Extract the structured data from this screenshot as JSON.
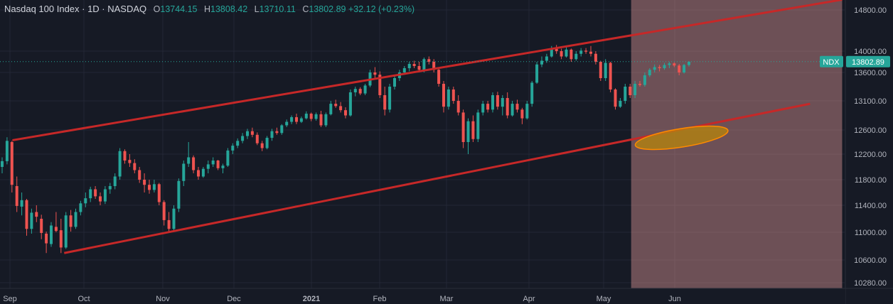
{
  "header": {
    "symbol_title": "Nasdaq 100 Index · 1D · NASDAQ",
    "open_label": "O",
    "open_value": "13744.15",
    "high_label": "H",
    "high_value": "13808.42",
    "low_label": "L",
    "low_value": "13710.11",
    "close_label": "C",
    "close_value": "13802.89",
    "change_value": "+32.12 (+0.23%)"
  },
  "last_price": {
    "ticker": "NDX",
    "value": "13802.89"
  },
  "colors": {
    "up": "#26a69a",
    "down": "#ef5350",
    "channel": "#c62828",
    "highlight_fill": "#e89b9b",
    "ellipse_fill": "#b8860b",
    "background": "#161a25"
  },
  "chart_data": {
    "type": "candlestick",
    "title": "Nasdaq 100 Index",
    "y_axis_ticks": [
      "14800.00",
      "14000.00",
      "13600.00",
      "13100.00",
      "12600.00",
      "12200.00",
      "11800.00",
      "11400.00",
      "11000.00",
      "10600.00",
      "10280.00"
    ],
    "x_axis_ticks": [
      "Sep",
      "Oct",
      "Nov",
      "Dec",
      "2021",
      "Feb",
      "Mar",
      "Apr",
      "May",
      "Jun"
    ],
    "ylim": [
      10200,
      15000
    ],
    "channel_lines": [
      {
        "name": "upper",
        "from": {
          "date": "2020-09-02",
          "price": 12430
        },
        "to": {
          "date": "2021-08-13",
          "price": 15000
        }
      },
      {
        "name": "lower",
        "from": {
          "date": "2020-09-23",
          "price": 10700
        },
        "to": {
          "date": "2021-07-30",
          "price": 13050
        }
      }
    ],
    "highlight_zone": {
      "from_date": "2021-05-13",
      "to_date": "2021-08-13"
    },
    "ellipse_marker": {
      "center_date": "2021-06-04",
      "center_price": 12470
    },
    "series": [
      {
        "values": [
          [
            12000,
            12150,
            11900,
            12090
          ],
          [
            12090,
            12480,
            12040,
            12420
          ],
          [
            12400,
            12420,
            11600,
            11720
          ],
          [
            11700,
            11850,
            11300,
            11390
          ],
          [
            11380,
            11600,
            11250,
            11480
          ],
          [
            11480,
            11500,
            10950,
            11050
          ],
          [
            11050,
            11350,
            10980,
            11290
          ],
          [
            11300,
            11400,
            11150,
            11230
          ],
          [
            11200,
            11260,
            10900,
            10990
          ],
          [
            10980,
            11010,
            10700,
            10840
          ],
          [
            10830,
            11150,
            10790,
            11100
          ],
          [
            11080,
            11300,
            11000,
            11020
          ],
          [
            11030,
            11200,
            10700,
            10780
          ],
          [
            10780,
            11300,
            10760,
            11250
          ],
          [
            11250,
            11330,
            11010,
            11080
          ],
          [
            11080,
            11350,
            11050,
            11300
          ],
          [
            11300,
            11470,
            11250,
            11430
          ],
          [
            11430,
            11600,
            11370,
            11510
          ],
          [
            11510,
            11690,
            11450,
            11650
          ],
          [
            11650,
            11700,
            11500,
            11540
          ],
          [
            11540,
            11600,
            11400,
            11460
          ],
          [
            11460,
            11700,
            11420,
            11650
          ],
          [
            11650,
            11750,
            11580,
            11700
          ],
          [
            11700,
            11900,
            11650,
            11850
          ],
          [
            11850,
            12300,
            11800,
            12250
          ],
          [
            12250,
            12280,
            12050,
            12100
          ],
          [
            12110,
            12200,
            12000,
            12060
          ],
          [
            12060,
            12120,
            11900,
            11950
          ],
          [
            11950,
            12000,
            11750,
            11800
          ],
          [
            11800,
            11900,
            11600,
            11720
          ],
          [
            11720,
            11800,
            11580,
            11640
          ],
          [
            11640,
            11800,
            11600,
            11730
          ],
          [
            11730,
            11750,
            11400,
            11450
          ],
          [
            11450,
            11480,
            11100,
            11180
          ],
          [
            11180,
            11300,
            11000,
            11050
          ],
          [
            11050,
            11400,
            11020,
            11350
          ],
          [
            11350,
            11820,
            11300,
            11780
          ],
          [
            11780,
            12100,
            11700,
            12050
          ],
          [
            12050,
            12400,
            12000,
            12150
          ],
          [
            12150,
            12180,
            11900,
            11950
          ],
          [
            11950,
            12000,
            11800,
            11850
          ],
          [
            11850,
            12000,
            11830,
            11970
          ],
          [
            11970,
            12100,
            11900,
            12040
          ],
          [
            12040,
            12150,
            12000,
            12100
          ],
          [
            12100,
            12110,
            11950,
            11980
          ],
          [
            11980,
            12050,
            11900,
            12020
          ],
          [
            12020,
            12300,
            12000,
            12260
          ],
          [
            12260,
            12380,
            12200,
            12340
          ],
          [
            12340,
            12460,
            12300,
            12420
          ],
          [
            12420,
            12550,
            12380,
            12500
          ],
          [
            12500,
            12620,
            12450,
            12580
          ],
          [
            12580,
            12640,
            12480,
            12520
          ],
          [
            12520,
            12560,
            12350,
            12380
          ],
          [
            12380,
            12420,
            12250,
            12300
          ],
          [
            12300,
            12500,
            12280,
            12470
          ],
          [
            12470,
            12620,
            12420,
            12580
          ],
          [
            12580,
            12640,
            12520,
            12550
          ],
          [
            12550,
            12700,
            12520,
            12680
          ],
          [
            12680,
            12780,
            12650,
            12740
          ],
          [
            12740,
            12850,
            12700,
            12820
          ],
          [
            12820,
            12880,
            12700,
            12740
          ],
          [
            12740,
            12830,
            12720,
            12800
          ],
          [
            12800,
            12920,
            12780,
            12880
          ],
          [
            12880,
            12900,
            12750,
            12790
          ],
          [
            12790,
            12900,
            12760,
            12870
          ],
          [
            12870,
            12930,
            12650,
            12680
          ],
          [
            12680,
            12900,
            12650,
            12870
          ],
          [
            12870,
            13100,
            12850,
            13050
          ],
          [
            13050,
            13120,
            12980,
            13010
          ],
          [
            13010,
            13080,
            12900,
            12940
          ],
          [
            12940,
            12990,
            12800,
            12850
          ],
          [
            12850,
            13300,
            12830,
            13250
          ],
          [
            13250,
            13350,
            13180,
            13310
          ],
          [
            13310,
            13340,
            13200,
            13230
          ],
          [
            13230,
            13400,
            13200,
            13370
          ],
          [
            13370,
            13650,
            13340,
            13600
          ],
          [
            13600,
            13700,
            13500,
            13560
          ],
          [
            13560,
            13620,
            13150,
            13200
          ],
          [
            13200,
            13350,
            12850,
            12950
          ],
          [
            12950,
            13400,
            12900,
            13350
          ],
          [
            13350,
            13550,
            13300,
            13500
          ],
          [
            13500,
            13650,
            13450,
            13600
          ],
          [
            13600,
            13720,
            13560,
            13680
          ],
          [
            13680,
            13800,
            13620,
            13760
          ],
          [
            13760,
            13820,
            13680,
            13720
          ],
          [
            13720,
            13800,
            13600,
            13650
          ],
          [
            13650,
            13880,
            13600,
            13850
          ],
          [
            13850,
            13900,
            13750,
            13800
          ],
          [
            13800,
            13850,
            13600,
            13650
          ],
          [
            13650,
            13700,
            13350,
            13400
          ],
          [
            13400,
            13450,
            12900,
            13000
          ],
          [
            13000,
            13350,
            12950,
            13300
          ],
          [
            13300,
            13350,
            13050,
            13100
          ],
          [
            13100,
            13200,
            12850,
            12900
          ],
          [
            12900,
            12950,
            12300,
            12400
          ],
          [
            12400,
            12800,
            12200,
            12750
          ],
          [
            12750,
            12850,
            12400,
            12450
          ],
          [
            12450,
            12950,
            12400,
            12900
          ],
          [
            12900,
            13100,
            12850,
            13050
          ],
          [
            13050,
            13100,
            12900,
            12950
          ],
          [
            12950,
            13250,
            12900,
            13200
          ],
          [
            13200,
            13260,
            12950,
            13000
          ],
          [
            13000,
            13200,
            12850,
            13150
          ],
          [
            13150,
            13250,
            12800,
            12850
          ],
          [
            12850,
            13100,
            12830,
            13050
          ],
          [
            13050,
            13120,
            12900,
            12950
          ],
          [
            12950,
            12980,
            12700,
            12800
          ],
          [
            12800,
            13100,
            12780,
            13050
          ],
          [
            13050,
            13450,
            13000,
            13420
          ],
          [
            13420,
            13800,
            13400,
            13750
          ],
          [
            13750,
            13900,
            13700,
            13820
          ],
          [
            13820,
            13950,
            13780,
            13900
          ],
          [
            13900,
            14100,
            13880,
            14050
          ],
          [
            14050,
            14120,
            13950,
            14000
          ],
          [
            14000,
            14050,
            13850,
            13900
          ],
          [
            13900,
            14080,
            13880,
            14030
          ],
          [
            14030,
            14050,
            13800,
            13850
          ],
          [
            13850,
            14000,
            13820,
            13950
          ],
          [
            13950,
            14060,
            13900,
            14010
          ],
          [
            14010,
            14060,
            13950,
            13990
          ],
          [
            13990,
            14100,
            13900,
            13950
          ],
          [
            13950,
            14000,
            13750,
            13800
          ],
          [
            13800,
            13820,
            13450,
            13500
          ],
          [
            13500,
            13850,
            13450,
            13780
          ],
          [
            13780,
            13800,
            13250,
            13300
          ],
          [
            13300,
            13320,
            12950,
            13000
          ],
          [
            13000,
            13150,
            12980,
            13100
          ],
          [
            13100,
            13400,
            13050,
            13350
          ],
          [
            13350,
            13400,
            13150,
            13200
          ],
          [
            13200,
            13450,
            13150,
            13400
          ],
          [
            13400,
            13450,
            13350,
            13380
          ],
          [
            13380,
            13600,
            13350,
            13550
          ],
          [
            13550,
            13680,
            13520,
            13650
          ],
          [
            13650,
            13750,
            13600,
            13700
          ],
          [
            13700,
            13740,
            13620,
            13680
          ],
          [
            13680,
            13780,
            13650,
            13740
          ],
          [
            13740,
            13800,
            13680,
            13770
          ],
          [
            13770,
            13790,
            13700,
            13730
          ],
          [
            13730,
            13760,
            13550,
            13600
          ],
          [
            13600,
            13760,
            13580,
            13740
          ],
          [
            13740,
            13810,
            13710,
            13800
          ]
        ]
      }
    ]
  }
}
